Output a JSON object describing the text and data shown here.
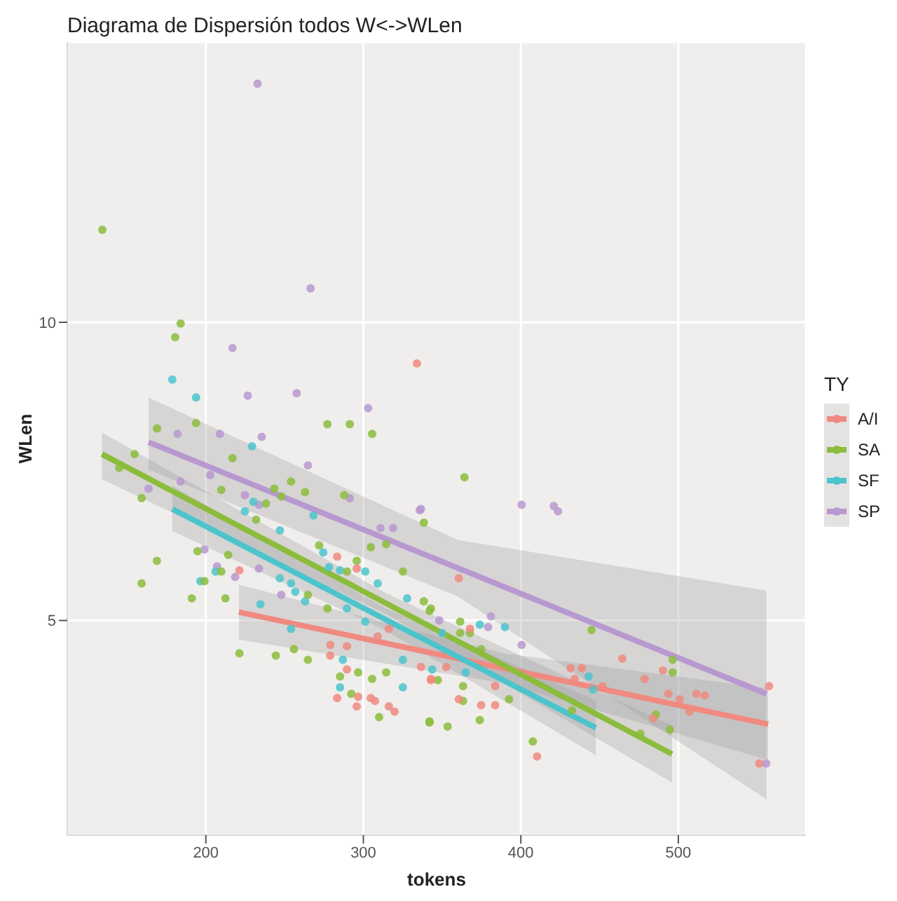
{
  "chart_data": {
    "type": "scatter",
    "title": "Diagrama de Dispersión todos W<->WLen",
    "xlabel": "tokens",
    "ylabel": "WLen",
    "legend_title": "TY",
    "legend": "right",
    "grid": true,
    "marker": "circle",
    "xlim": [
      112,
      581
    ],
    "ylim": [
      1.4,
      14.7
    ],
    "xticks": [
      200,
      300,
      400,
      500
    ],
    "yticks": [
      5,
      10
    ],
    "series": [
      {
        "name": "A/I",
        "color": "#f08a80",
        "x": [
          334,
          221.3,
          283.4,
          295.8,
          279,
          279,
          289.6,
          289.6,
          283.4,
          295.8,
          296.7,
          304.7,
          307.4,
          316.2,
          319.8,
          309.1,
          316.2,
          336.6,
          342.9,
          360.6,
          367.7,
          342.9,
          352.6,
          360.6,
          374.8,
          383.7,
          383.7,
          410.3,
          431.6,
          438.7,
          434.2,
          451.9,
          464.4,
          478.6,
          490.2,
          493.7,
          500.9,
          511.5,
          516.8,
          507,
          484,
          557.6,
          551.4
        ],
        "values": [
          9.31,
          5.84,
          6.07,
          5.87,
          4.59,
          4.41,
          4.57,
          4.18,
          3.7,
          3.56,
          3.72,
          3.7,
          3.65,
          3.56,
          3.47,
          4.73,
          4.86,
          4.22,
          4.0,
          5.71,
          4.86,
          4.02,
          4.22,
          3.68,
          3.58,
          3.58,
          3.9,
          2.72,
          4.2,
          4.2,
          4.02,
          3.9,
          4.36,
          4.02,
          4.16,
          3.77,
          3.68,
          3.77,
          3.74,
          3.47,
          3.36,
          3.9,
          2.6
        ]
      },
      {
        "name": "SA",
        "color": "#8cbc3c",
        "x": [
          134.3,
          184,
          180.5,
          193.8,
          277.2,
          291.4,
          305.6,
          169,
          159.2,
          168.9,
          159.2,
          191.1,
          212.4,
          194.7,
          199.1,
          209.8,
          214.2,
          221.3,
          244.4,
          255.9,
          264.8,
          277.2,
          285.2,
          292.3,
          296.7,
          305.6,
          310,
          314.5,
          342,
          264.8,
          271.9,
          289.6,
          295.8,
          304.7,
          247.9,
          254.1,
          243.5,
          238.2,
          231.9,
          216.9,
          209.8,
          154.7,
          145,
          263,
          287.8,
          314.5,
          325.1,
          338.4,
          342,
          364.2,
          338.4,
          342.9,
          361.5,
          361.5,
          367.7,
          363.3,
          363.3,
          373.9,
          342,
          353.5,
          347.3,
          392.5,
          407.6,
          444.9,
          496.4,
          496.4,
          485.7,
          475.9,
          494.6,
          432.5,
          374.8
        ],
        "values": [
          11.55,
          9.98,
          9.75,
          8.31,
          8.29,
          8.29,
          8.13,
          8.22,
          7.05,
          6.0,
          5.62,
          5.37,
          5.37,
          6.16,
          5.66,
          5.82,
          6.1,
          4.45,
          4.41,
          4.52,
          4.34,
          5.2,
          4.06,
          3.77,
          4.13,
          4.02,
          3.38,
          4.13,
          3.29,
          5.43,
          6.26,
          5.82,
          6.0,
          6.23,
          7.08,
          7.33,
          7.21,
          6.96,
          6.69,
          7.72,
          7.19,
          7.79,
          7.56,
          7.15,
          7.1,
          6.28,
          5.82,
          5.32,
          5.16,
          7.4,
          6.64,
          5.2,
          4.98,
          4.79,
          4.79,
          3.9,
          3.65,
          3.33,
          3.31,
          3.22,
          4.0,
          3.68,
          2.97,
          4.84,
          4.13,
          4.34,
          3.42,
          3.1,
          3.17,
          3.49,
          4.52
        ]
      },
      {
        "name": "SF",
        "color": "#4cc4cc",
        "x": [
          178.7,
          193.8,
          229.3,
          224.8,
          230.2,
          247,
          268.3,
          196.5,
          206.2,
          234.6,
          247,
          254.1,
          256.8,
          263,
          254.1,
          274.5,
          278.1,
          285.2,
          301.2,
          289.6,
          301.2,
          309.1,
          327.8,
          287,
          285.2,
          325.1,
          325.1,
          373.9,
          389.9,
          343.7,
          365,
          443.1,
          445.8,
          350
        ],
        "values": [
          9.04,
          8.74,
          7.92,
          6.83,
          6.99,
          6.51,
          6.76,
          5.66,
          5.82,
          5.27,
          5.71,
          5.62,
          5.48,
          5.32,
          4.86,
          6.14,
          5.89,
          5.84,
          5.82,
          5.2,
          4.98,
          5.62,
          5.37,
          4.34,
          3.88,
          3.88,
          4.34,
          4.93,
          4.89,
          4.18,
          4.13,
          4.06,
          3.84,
          4.79
        ]
      },
      {
        "name": "SP",
        "color": "#b898d0",
        "x": [
          232.8,
          266.5,
          216.9,
          226.6,
          257.7,
          303,
          182,
          208.9,
          235.5,
          264.8,
          184,
          163.6,
          202.7,
          224.8,
          233.7,
          291.4,
          199.1,
          207.1,
          218.6,
          233.7,
          247.9,
          335.8,
          310.9,
          318.9,
          400.5,
          420.9,
          423.6,
          381,
          379.2,
          348.2,
          400.5,
          555.8,
          336.6
        ],
        "values": [
          14.0,
          10.57,
          9.57,
          8.77,
          8.81,
          8.56,
          8.13,
          8.13,
          8.08,
          7.6,
          7.33,
          7.21,
          7.44,
          7.1,
          6.94,
          7.05,
          6.19,
          5.91,
          5.73,
          5.87,
          5.43,
          6.85,
          6.55,
          6.55,
          6.94,
          6.92,
          6.83,
          5.07,
          4.89,
          5.0,
          4.59,
          2.6,
          6.87
        ]
      },
      {
        "type": "line",
        "marker": "none",
        "color": "#f08a80",
        "x": [
          221,
          389,
          557
        ],
        "values": [
          5.14,
          4.2,
          3.26
        ],
        "lower": [
          4.68,
          3.95,
          2.66
        ],
        "upper": [
          5.6,
          4.45,
          3.86
        ]
      },
      {
        "type": "line",
        "marker": "none",
        "color": "#8cbc3c",
        "x": [
          134,
          315,
          496
        ],
        "values": [
          7.79,
          5.28,
          2.76
        ],
        "lower": [
          7.37,
          5.1,
          2.28
        ],
        "upper": [
          8.15,
          5.45,
          3.24
        ]
      },
      {
        "type": "line",
        "marker": "none",
        "color": "#4cc4cc",
        "x": [
          178.7,
          313,
          447.6
        ],
        "values": [
          6.87,
          5.03,
          3.2
        ],
        "lower": [
          6.5,
          4.85,
          2.74
        ],
        "upper": [
          7.26,
          5.22,
          3.66
        ]
      },
      {
        "type": "line",
        "marker": "none",
        "color": "#b898d0",
        "x": [
          163.6,
          360,
          556
        ],
        "values": [
          7.99,
          5.88,
          3.77
        ],
        "lower": [
          7.53,
          5.4,
          2.0
        ],
        "upper": [
          8.74,
          6.35,
          5.5
        ]
      }
    ]
  }
}
